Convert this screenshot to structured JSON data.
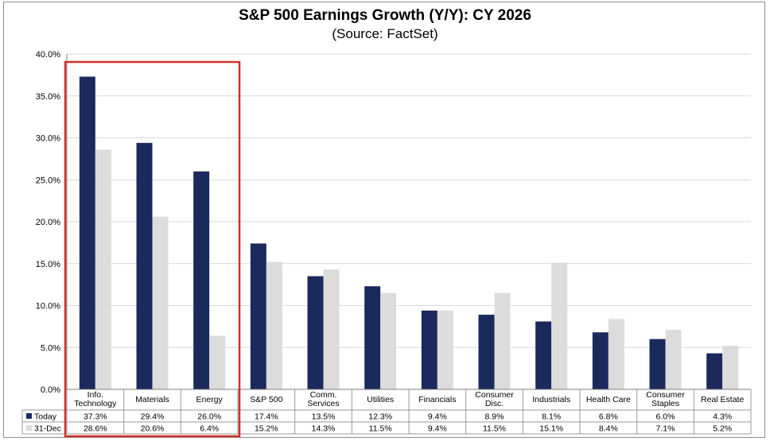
{
  "title": "S&P 500 Earnings Growth (Y/Y): CY 2026",
  "subtitle": "(Source: FactSet)",
  "chart_data": {
    "type": "bar",
    "title": "S&P 500 Earnings Growth (Y/Y): CY 2026",
    "subtitle": "(Source: FactSet)",
    "categories": [
      "Info. Technology",
      "Materials",
      "Energy",
      "S&P 500",
      "Comm. Services",
      "Utilities",
      "Financials",
      "Consumer Disc.",
      "Industrials",
      "Health Care",
      "Consumer Staples",
      "Real Estate"
    ],
    "category_lines": [
      [
        "Info.",
        "Technology"
      ],
      [
        "Materials"
      ],
      [
        "Energy"
      ],
      [
        "S&P 500"
      ],
      [
        "Comm.",
        "Services"
      ],
      [
        "Utilities"
      ],
      [
        "Financials"
      ],
      [
        "Consumer",
        "Disc."
      ],
      [
        "Industrials"
      ],
      [
        "Health Care"
      ],
      [
        "Consumer",
        "Staples"
      ],
      [
        "Real Estate"
      ]
    ],
    "series": [
      {
        "name": "Today",
        "color": "#1b2a5c",
        "values": [
          37.3,
          29.4,
          26.0,
          17.4,
          13.5,
          12.3,
          9.4,
          8.9,
          8.1,
          6.8,
          6.0,
          4.3
        ],
        "labels": [
          "37.3%",
          "29.4%",
          "26.0%",
          "17.4%",
          "13.5%",
          "12.3%",
          "9.4%",
          "8.9%",
          "8.1%",
          "6.8%",
          "6.0%",
          "4.3%"
        ]
      },
      {
        "name": "31-Dec",
        "color": "#dcdcdc",
        "values": [
          28.6,
          20.6,
          6.4,
          15.2,
          14.3,
          11.5,
          9.4,
          11.5,
          15.1,
          8.4,
          7.1,
          5.2
        ],
        "labels": [
          "28.6%",
          "20.6%",
          "6.4%",
          "15.2%",
          "14.3%",
          "11.5%",
          "9.4%",
          "11.5%",
          "15.1%",
          "8.4%",
          "7.1%",
          "5.2%"
        ]
      }
    ],
    "yticks": [
      "0.0%",
      "5.0%",
      "10.0%",
      "15.0%",
      "20.0%",
      "25.0%",
      "30.0%",
      "35.0%",
      "40.0%"
    ],
    "ylim": [
      0,
      40
    ],
    "ylabel": "",
    "xlabel": "",
    "grid": true,
    "legend": "data-table",
    "highlight": {
      "categories": [
        "Info. Technology",
        "Materials",
        "Energy"
      ],
      "color": "#d0312d"
    }
  }
}
